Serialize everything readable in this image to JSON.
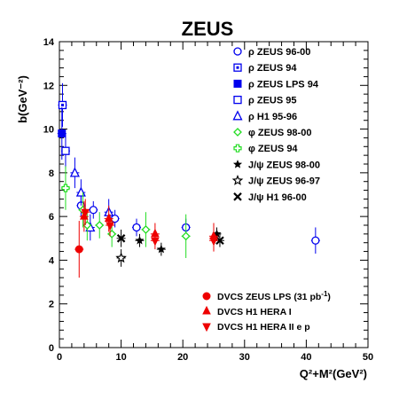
{
  "chart_data": {
    "type": "scatter",
    "title": "ZEUS",
    "xlabel": "Q²+M²(GeV²)",
    "ylabel": "b(GeV⁻²)",
    "xlim": [
      0,
      50
    ],
    "ylim": [
      0,
      14
    ],
    "x_ticks": [
      0,
      10,
      20,
      30,
      40,
      50
    ],
    "y_ticks": [
      0,
      2,
      4,
      6,
      8,
      10,
      12,
      14
    ],
    "grid": false,
    "legend_top": [
      {
        "label": "ρ ZEUS  96-00",
        "marker": "open-circle",
        "color": "#0000ee"
      },
      {
        "label": "ρ ZEUS 94",
        "marker": "open-square-dot",
        "color": "#0000ee"
      },
      {
        "label": "ρ ZEUS LPS 94",
        "marker": "filled-square",
        "color": "#0000ee"
      },
      {
        "label": "ρ ZEUS 95",
        "marker": "open-square",
        "color": "#0000ee"
      },
      {
        "label": "ρ H1 95-96",
        "marker": "open-triangle",
        "color": "#0000ee"
      },
      {
        "label": "φ ZEUS 98-00",
        "marker": "open-diamond",
        "color": "#22dd22"
      },
      {
        "label": "φ ZEUS 94",
        "marker": "open-cross",
        "color": "#22dd22"
      },
      {
        "label": "J/ψ ZEUS 98-00",
        "marker": "star",
        "color": "#000000"
      },
      {
        "label": "J/ψ ZEUS 96-97",
        "marker": "star-open",
        "color": "#000000"
      },
      {
        "label": "J/ψ H1 96-00",
        "marker": "x",
        "color": "#000000"
      }
    ],
    "legend_bottom": [
      {
        "label": "DVCS ZEUS LPS (31 pb",
        "sup": "-1",
        "tail": ")",
        "marker": "filled-circle",
        "color": "#ee0000"
      },
      {
        "label": "DVCS H1 HERA I",
        "marker": "filled-triangle",
        "color": "#ee0000"
      },
      {
        "label": "DVCS H1 HERA II e p",
        "marker": "filled-triangle-down",
        "color": "#ee0000"
      }
    ],
    "series": [
      {
        "name": "ρ ZEUS  96-00",
        "marker": "open-circle",
        "color": "#0000ee",
        "points": [
          [
            3.5,
            6.5,
            0.5
          ],
          [
            5.5,
            6.3,
            0.4
          ],
          [
            9.0,
            5.9,
            0.4
          ],
          [
            12.5,
            5.5,
            0.4
          ],
          [
            20.5,
            5.5,
            0.4
          ],
          [
            41.5,
            4.9,
            0.6
          ]
        ]
      },
      {
        "name": "ρ ZEUS 94",
        "marker": "open-square-dot",
        "color": "#0000ee",
        "points": [
          [
            0.5,
            11.1,
            1.0
          ]
        ]
      },
      {
        "name": "ρ ZEUS LPS 94",
        "marker": "filled-square",
        "color": "#0000ee",
        "points": [
          [
            0.4,
            9.8,
            1.2
          ]
        ]
      },
      {
        "name": "ρ ZEUS 95",
        "marker": "open-square",
        "color": "#0000ee",
        "points": [
          [
            1.0,
            9.0,
            0.8
          ]
        ]
      },
      {
        "name": "ρ H1 95-96",
        "marker": "open-triangle",
        "color": "#0000ee",
        "points": [
          [
            2.5,
            8.0,
            0.7
          ],
          [
            3.5,
            7.1,
            0.6
          ],
          [
            5.0,
            5.5,
            0.6
          ],
          [
            8.0,
            6.2,
            0.6
          ]
        ]
      },
      {
        "name": "φ ZEUS 98-00",
        "marker": "open-diamond",
        "color": "#22dd22",
        "points": [
          [
            3.8,
            6.3,
            0.8
          ],
          [
            4.5,
            5.6,
            0.7
          ],
          [
            6.5,
            5.6,
            0.6
          ],
          [
            8.5,
            5.2,
            0.6
          ],
          [
            14.0,
            5.4,
            0.8
          ],
          [
            20.5,
            5.1,
            1.0
          ]
        ]
      },
      {
        "name": "φ ZEUS 94",
        "marker": "open-cross",
        "color": "#22dd22",
        "points": [
          [
            1.0,
            7.3,
            1.0
          ]
        ]
      },
      {
        "name": "J/ψ ZEUS 98-00",
        "marker": "star",
        "color": "#000000",
        "points": [
          [
            13.0,
            4.9,
            0.3
          ],
          [
            16.5,
            4.5,
            0.3
          ],
          [
            25.5,
            5.2,
            0.3
          ]
        ]
      },
      {
        "name": "J/ψ ZEUS 96-97",
        "marker": "star-open",
        "color": "#000000",
        "points": [
          [
            10.0,
            4.1,
            0.4
          ]
        ]
      },
      {
        "name": "J/ψ H1 96-00",
        "marker": "x",
        "color": "#000000",
        "points": [
          [
            10.0,
            5.0,
            0.4
          ],
          [
            26.0,
            4.9,
            0.3
          ]
        ]
      },
      {
        "name": "DVCS ZEUS LPS (31 pb⁻¹)",
        "marker": "filled-circle",
        "color": "#ee0000",
        "points": [
          [
            3.2,
            4.5,
            1.3
          ]
        ]
      },
      {
        "name": "DVCS H1 HERA I",
        "marker": "filled-triangle",
        "color": "#ee0000",
        "points": [
          [
            4.0,
            6.0,
            0.7
          ],
          [
            8.0,
            5.9,
            0.6
          ],
          [
            15.5,
            5.2,
            0.5
          ],
          [
            25.0,
            5.1,
            0.6
          ]
        ]
      },
      {
        "name": "DVCS H1 HERA II e p",
        "marker": "filled-triangle-down",
        "color": "#ee0000",
        "points": [
          [
            4.2,
            6.2,
            0.6
          ],
          [
            8.2,
            5.6,
            0.5
          ],
          [
            15.5,
            4.9,
            0.4
          ],
          [
            25.0,
            4.9,
            0.5
          ]
        ]
      }
    ]
  }
}
